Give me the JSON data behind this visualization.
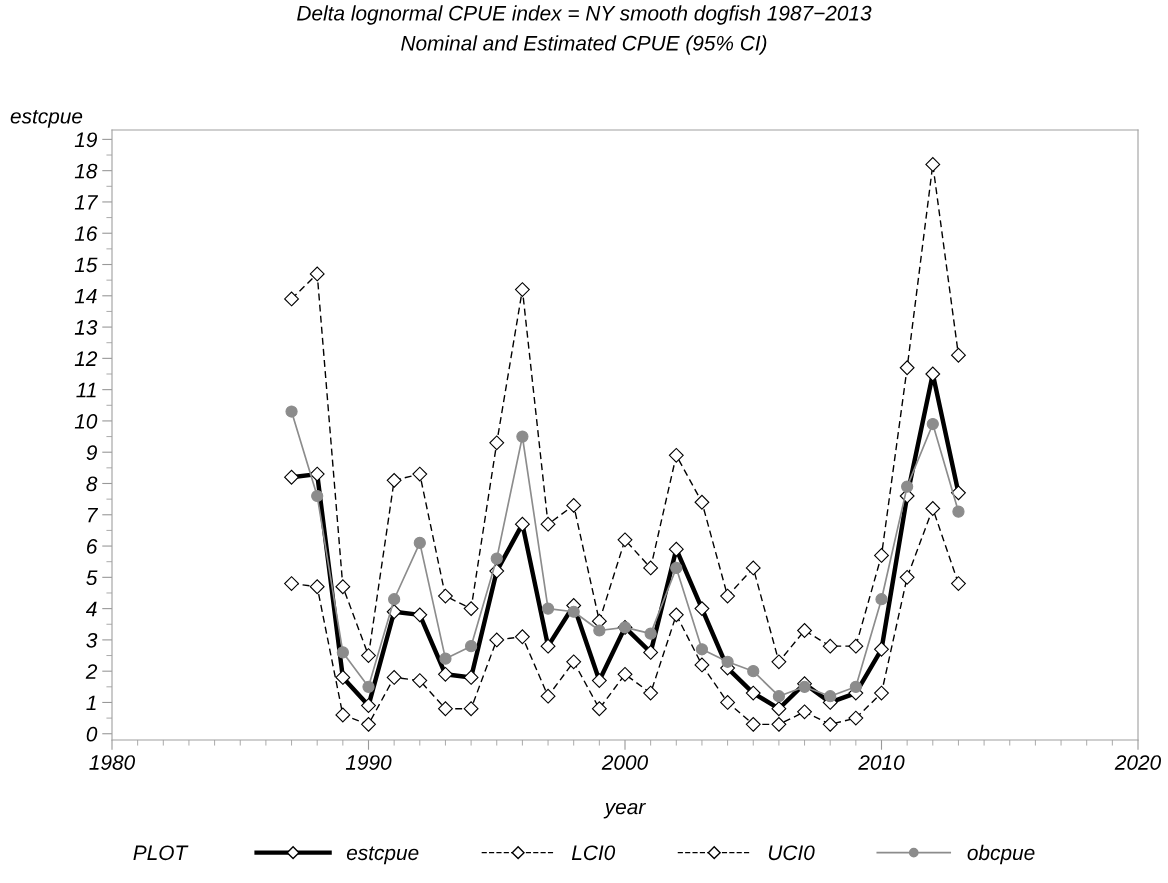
{
  "chart_data": {
    "type": "line",
    "title": "Delta lognormal CPUE index = NY smooth dogfish 1987−2013",
    "subtitle": "Nominal and Estimated CPUE (95% CI)",
    "xlabel": "year",
    "ylabel": "estcpue",
    "legend_title": "PLOT",
    "legend": "bottom",
    "grid": false,
    "x": [
      1987,
      1988,
      1989,
      1990,
      1991,
      1992,
      1993,
      1994,
      1995,
      1996,
      1997,
      1998,
      1999,
      2000,
      2001,
      2002,
      2003,
      2004,
      2005,
      2006,
      2007,
      2008,
      2009,
      2010,
      2011,
      2012,
      2013
    ],
    "xlim": [
      1980,
      2020
    ],
    "xticks": [
      1980,
      1990,
      2000,
      2010,
      2020
    ],
    "ylim": [
      -0.2,
      19.3
    ],
    "yticks": [
      0,
      1,
      2,
      3,
      4,
      5,
      6,
      7,
      8,
      9,
      10,
      11,
      12,
      13,
      14,
      15,
      16,
      17,
      18,
      19
    ],
    "series": [
      {
        "name": "estcpue",
        "color": "#000000",
        "marker": "diamond",
        "line_style": "solid",
        "values": [
          8.2,
          8.3,
          1.8,
          0.9,
          3.9,
          3.8,
          1.9,
          1.8,
          5.2,
          6.7,
          2.8,
          4.1,
          1.7,
          3.4,
          2.6,
          5.9,
          4.0,
          2.1,
          1.3,
          0.8,
          1.6,
          1.0,
          1.3,
          2.7,
          7.6,
          11.5,
          7.7
        ]
      },
      {
        "name": "LCI0",
        "color": "#000000",
        "marker": "diamond",
        "line_style": "dashed",
        "values": [
          4.8,
          4.7,
          0.6,
          0.3,
          1.8,
          1.7,
          0.8,
          0.8,
          3.0,
          3.1,
          1.2,
          2.3,
          0.8,
          1.9,
          1.3,
          3.8,
          2.2,
          1.0,
          0.3,
          0.3,
          0.7,
          0.3,
          0.5,
          1.3,
          5.0,
          7.2,
          4.8
        ]
      },
      {
        "name": "UCI0",
        "color": "#000000",
        "marker": "diamond",
        "line_style": "dashed",
        "values": [
          13.9,
          14.7,
          4.7,
          2.5,
          8.1,
          8.3,
          4.4,
          4.0,
          9.3,
          14.2,
          6.7,
          7.3,
          3.6,
          6.2,
          5.3,
          8.9,
          7.4,
          4.4,
          5.3,
          2.3,
          3.3,
          2.8,
          2.8,
          5.7,
          11.7,
          18.2,
          12.1
        ]
      },
      {
        "name": "obcpue",
        "color": "#8c8c8c",
        "marker": "circle",
        "line_style": "solid",
        "values": [
          10.3,
          7.6,
          2.6,
          1.5,
          4.3,
          6.1,
          2.4,
          2.8,
          5.6,
          9.5,
          4.0,
          3.9,
          3.3,
          3.4,
          3.2,
          5.3,
          2.7,
          2.3,
          2.0,
          1.2,
          1.5,
          1.2,
          1.5,
          4.3,
          7.9,
          9.9,
          7.1
        ]
      }
    ]
  }
}
